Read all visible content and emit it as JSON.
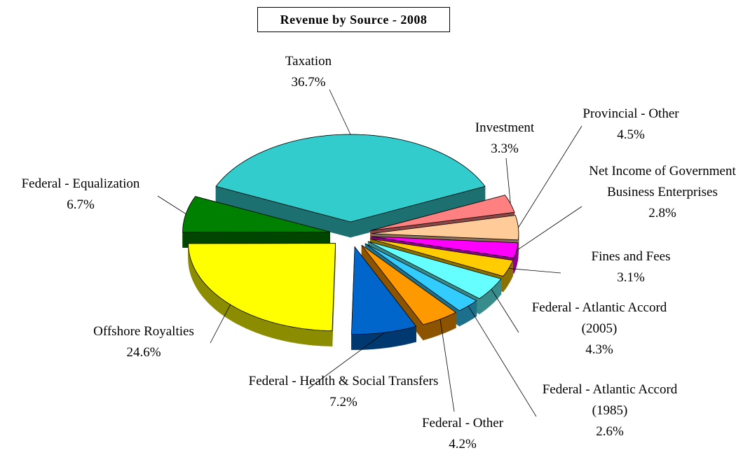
{
  "chart_data": {
    "type": "pie",
    "title": "Revenue by Source - 2008",
    "categories": [
      "Taxation",
      "Investment",
      "Provincial - Other",
      "Net Income of Government Business Enterprises",
      "Fines and Fees",
      "Federal - Atlantic Accord (2005)",
      "Federal - Atlantic Accord (1985)",
      "Federal - Other",
      "Federal - Health & Social Transfers",
      "Offshore Royalties",
      "Federal - Equalization"
    ],
    "values": [
      36.7,
      3.3,
      4.5,
      2.8,
      3.1,
      4.3,
      2.6,
      4.2,
      7.2,
      24.6,
      6.7
    ],
    "value_labels": [
      "36.7%",
      "3.3%",
      "4.5%",
      "2.8%",
      "3.1%",
      "4.3%",
      "2.6%",
      "4.2%",
      "7.2%",
      "24.6%",
      "6.7%"
    ],
    "colors": [
      "#33cccc",
      "#ff8080",
      "#ffcc99",
      "#ff00ff",
      "#ffcc00",
      "#66ffff",
      "#33ccff",
      "#ff9900",
      "#0066cc",
      "#ffff00",
      "#008000"
    ]
  }
}
